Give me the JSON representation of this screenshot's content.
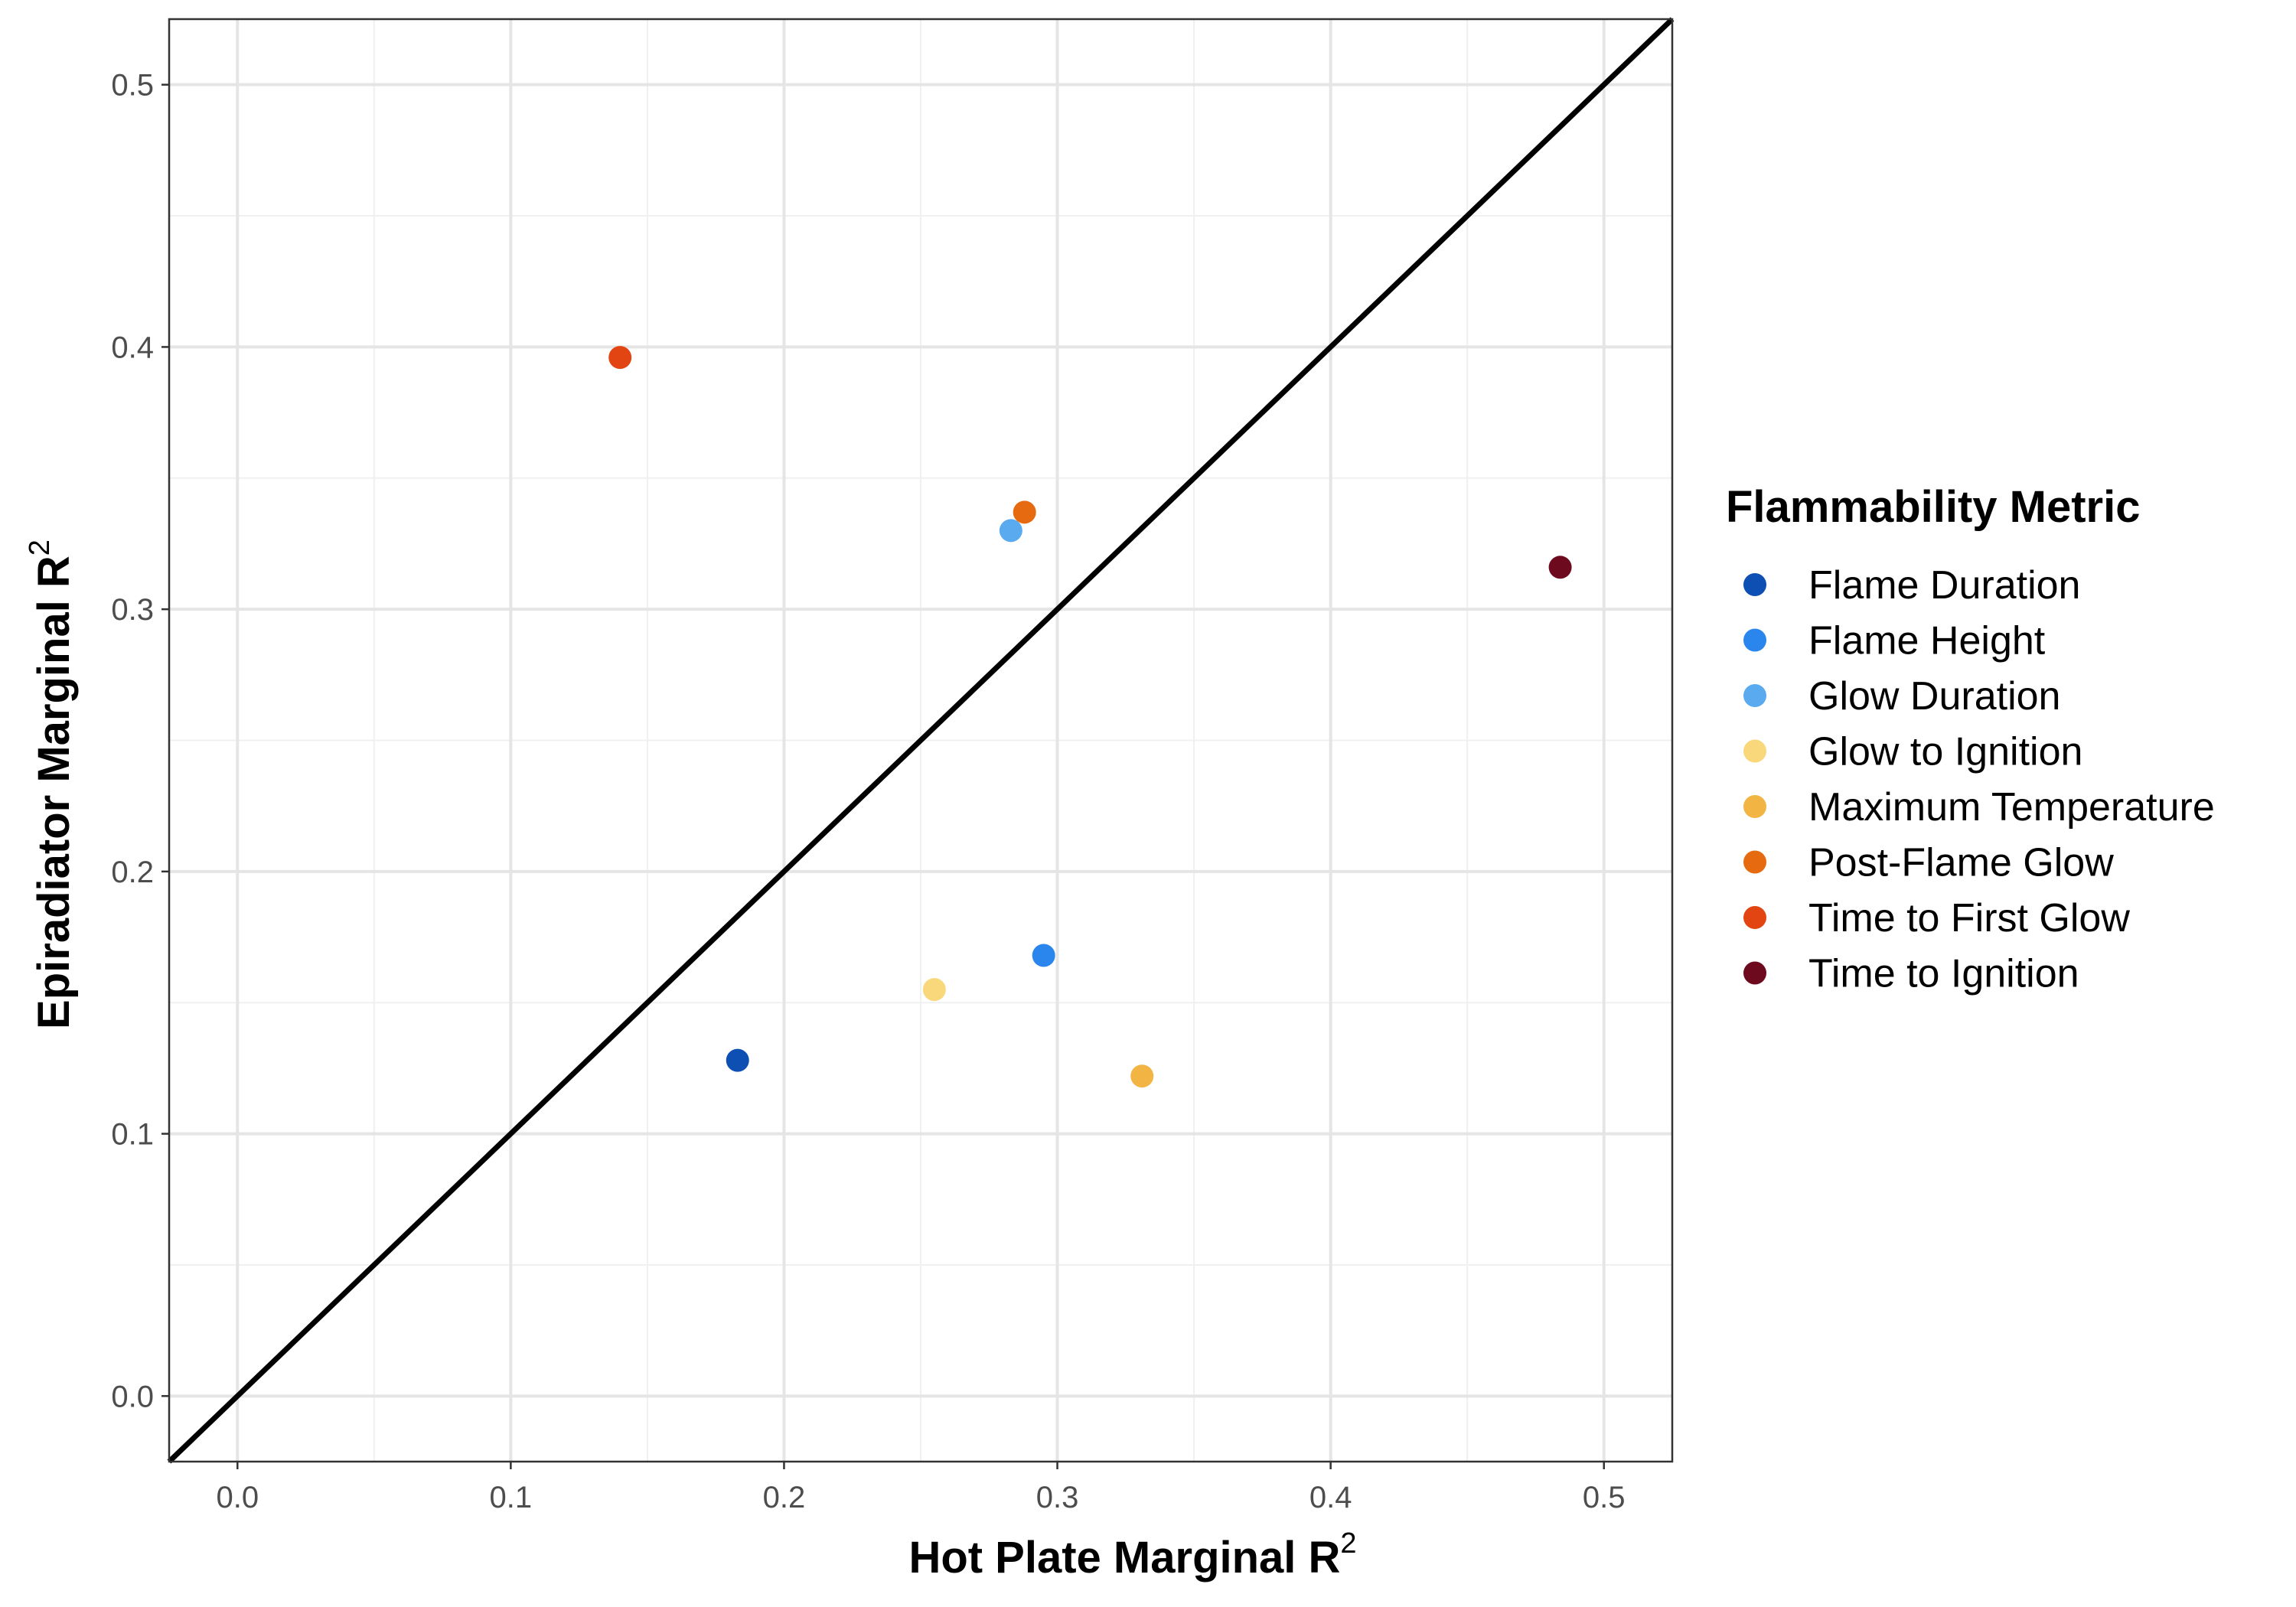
{
  "chart_data": {
    "type": "scatter",
    "xlabel": "Hot Plate Marginal R",
    "ylabel": "Epiradiator Marginal R",
    "label_superscript": "2",
    "xlim": [
      -0.025,
      0.525
    ],
    "ylim": [
      -0.025,
      0.525
    ],
    "x_ticks": [
      0.0,
      0.1,
      0.2,
      0.3,
      0.4,
      0.5
    ],
    "y_ticks": [
      0.0,
      0.1,
      0.2,
      0.3,
      0.4,
      0.5
    ],
    "x_tick_labels": [
      "0.0",
      "0.1",
      "0.2",
      "0.3",
      "0.4",
      "0.5"
    ],
    "y_tick_labels": [
      "0.0",
      "0.1",
      "0.2",
      "0.3",
      "0.4",
      "0.5"
    ],
    "grid": true,
    "reference_line": "y = x",
    "legend_title": "Flammability Metric",
    "legend_position": "right",
    "series": [
      {
        "name": "Flame Duration",
        "color": "#0d4fb3",
        "x": 0.183,
        "y": 0.128
      },
      {
        "name": "Flame Height",
        "color": "#2a86ec",
        "x": 0.295,
        "y": 0.168
      },
      {
        "name": "Glow Duration",
        "color": "#5aaaf0",
        "x": 0.283,
        "y": 0.33
      },
      {
        "name": "Glow to Ignition",
        "color": "#f9d77b",
        "x": 0.255,
        "y": 0.155
      },
      {
        "name": "Maximum Temperature",
        "color": "#f2b443",
        "x": 0.331,
        "y": 0.122
      },
      {
        "name": "Post-Flame Glow",
        "color": "#e66a10",
        "x": 0.288,
        "y": 0.337
      },
      {
        "name": "Time to First Glow",
        "color": "#e34512",
        "x": 0.14,
        "y": 0.396
      },
      {
        "name": "Time to Ignition",
        "color": "#6d0a1e",
        "x": 0.484,
        "y": 0.316
      }
    ]
  }
}
